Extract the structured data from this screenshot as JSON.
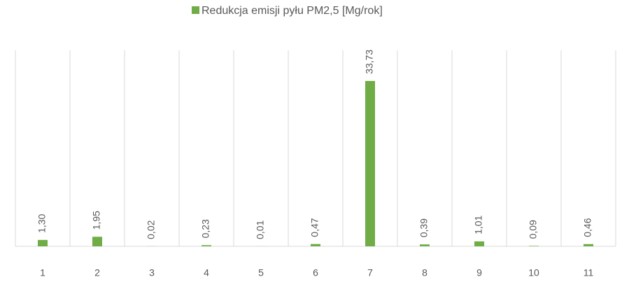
{
  "chart_data": {
    "type": "bar",
    "categories": [
      "1",
      "2",
      "3",
      "4",
      "5",
      "6",
      "7",
      "8",
      "9",
      "10",
      "11"
    ],
    "series": [
      {
        "name": "Redukcja emisji pyłu PM2,5 [Mg/rok]",
        "color": "#70ad47",
        "values": [
          1.3,
          1.95,
          0.02,
          0.23,
          0.01,
          0.47,
          33.73,
          0.39,
          1.01,
          0.09,
          0.46
        ],
        "value_labels": [
          "1,30",
          "1,95",
          "0,02",
          "0,23",
          "0,01",
          "0,47",
          "33,73",
          "0,39",
          "1,01",
          "0,09",
          "0,46"
        ]
      }
    ],
    "ylim": [
      0,
      40
    ],
    "legend": "top"
  }
}
